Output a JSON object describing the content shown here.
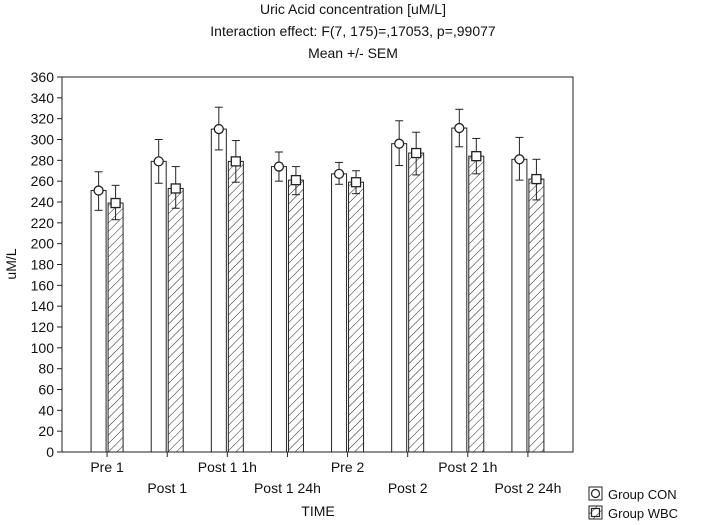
{
  "chart_data": {
    "type": "bar",
    "title": "Uric Acid concentration [uM/L]",
    "subtitle": "Interaction effect: F(7, 175)=,17053, p=,99077",
    "subtitle2": "Mean +/- SEM",
    "xlabel": "TIME",
    "ylabel": "uM/L",
    "ylim": [
      0,
      360
    ],
    "yticks": [
      "0",
      "20",
      "40",
      "60",
      "80",
      "100",
      "120",
      "140",
      "160",
      "180",
      "200",
      "220",
      "240",
      "260",
      "280",
      "300",
      "320",
      "340",
      "360"
    ],
    "categories": [
      "Pre 1",
      "Post 1",
      "Post 1 1h",
      "Post 1 24h",
      "Pre 2",
      "Post 2",
      "Post 2 1h",
      "Post 2 24h"
    ],
    "series": [
      {
        "name": "Group CON",
        "marker": "circle",
        "fill": "white",
        "values": [
          251,
          279,
          310,
          274,
          267,
          296,
          311,
          281
        ],
        "err_low": [
          232,
          258,
          290,
          260,
          257,
          275,
          293,
          261
        ],
        "err_high": [
          269,
          300,
          331,
          288,
          278,
          318,
          329,
          302
        ]
      },
      {
        "name": "Group WBC",
        "marker": "square",
        "fill": "hatched",
        "values": [
          239,
          253,
          279,
          261,
          259,
          287,
          284,
          262
        ],
        "err_low": [
          223,
          234,
          259,
          247,
          248,
          266,
          267,
          242
        ],
        "err_high": [
          256,
          274,
          299,
          274,
          270,
          307,
          301,
          281
        ]
      }
    ],
    "grid": false,
    "legend_position": "bottom-right"
  }
}
